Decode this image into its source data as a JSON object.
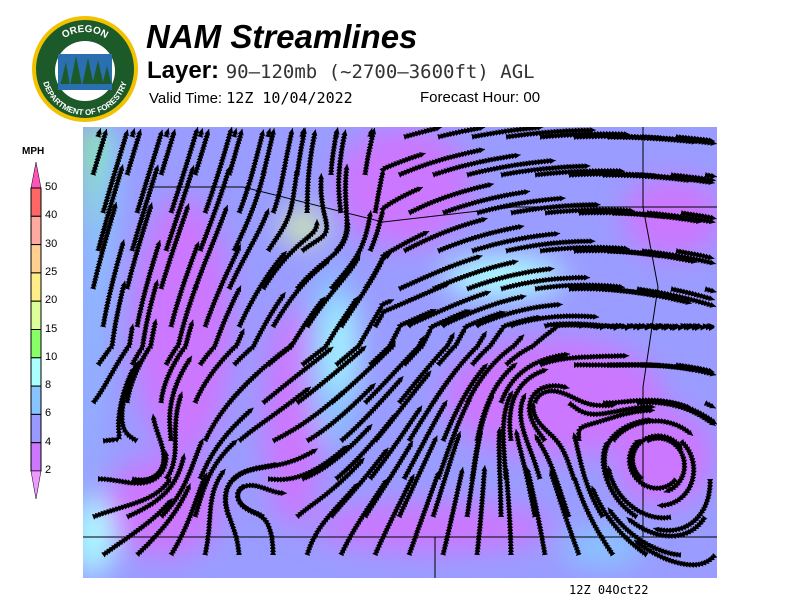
{
  "header": {
    "title": "NAM Streamlines",
    "layer_label": "Layer:",
    "layer_value": "90–120mb (~2700–3600ft) AGL",
    "valid_label": "Valid Time:",
    "valid_value": "12Z 10/04/2022",
    "forecast_label": "Forecast Hour:",
    "forecast_value": "00"
  },
  "logo": {
    "text_top": "OREGON",
    "text_bottom": "DEPARTMENT OF FORESTRY",
    "colors": {
      "ring": "#1d5a2a",
      "border": "#f2c200"
    }
  },
  "legend": {
    "unit": "MPH",
    "ticks": [
      "50",
      "40",
      "30",
      "25",
      "20",
      "15",
      "10",
      "8",
      "6",
      "4",
      "2"
    ],
    "colors": [
      "#ff6666",
      "#ffaaa0",
      "#ffd090",
      "#ffee88",
      "#ddff99",
      "#88ff66",
      "#aaffff",
      "#88c4ff",
      "#9999ff",
      "#cc77ff"
    ],
    "over_color": "#ff55bb",
    "under_color": "#ee99ff"
  },
  "footer": {
    "stamp": "12Z 04Oct22"
  }
}
